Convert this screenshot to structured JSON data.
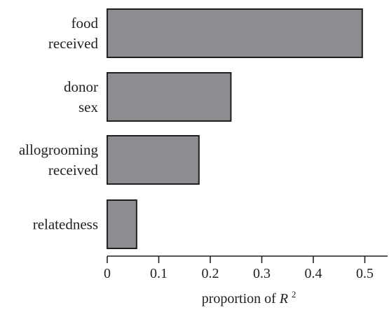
{
  "chart_data": {
    "type": "bar",
    "orientation": "horizontal",
    "categories": [
      [
        "food",
        "received"
      ],
      [
        "donor",
        "sex"
      ],
      [
        "allogrooming",
        "received"
      ],
      [
        "relatedness"
      ]
    ],
    "values": [
      0.495,
      0.24,
      0.178,
      0.057
    ],
    "xlabel": "proportion of R",
    "xlabel_superscript": "2",
    "xlim": [
      0,
      0.55
    ],
    "xticks": [
      0,
      0.1,
      0.2,
      0.3,
      0.4,
      0.5
    ],
    "xtick_labels": [
      "0",
      "0.1",
      "0.2",
      "0.3",
      "0.4",
      "0.5"
    ],
    "grid": false,
    "bar_color": "#8c8d90",
    "edge_color": "#231f20"
  }
}
